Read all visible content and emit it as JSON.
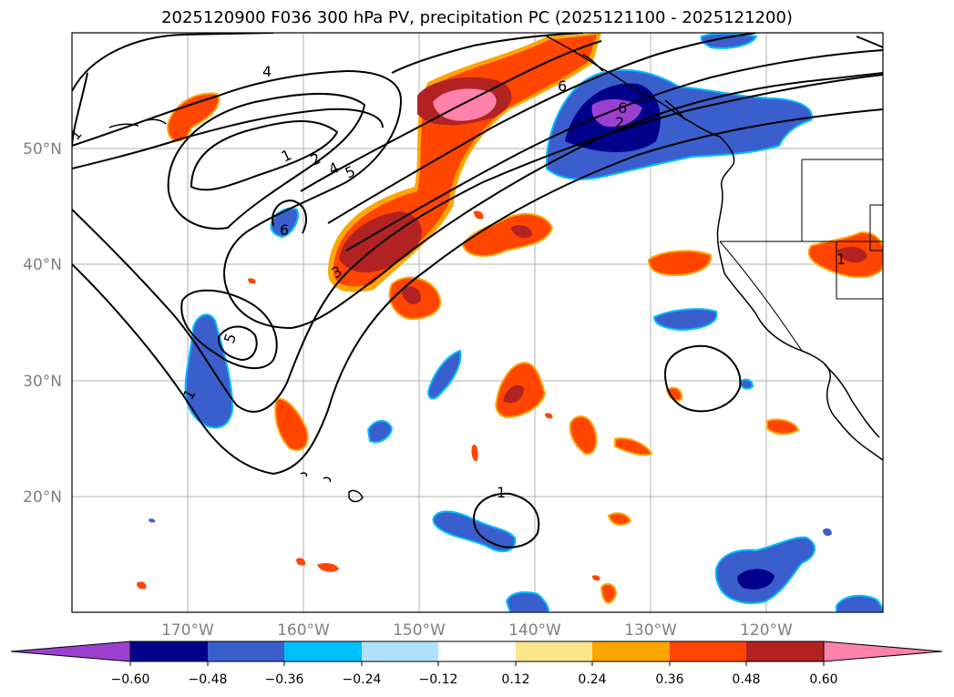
{
  "title": "2025120900 F036 300 hPa PV, precipitation PC (2025121100 - 2025121200)",
  "map": {
    "lat_labels": [
      "50°N",
      "40°N",
      "30°N",
      "20°N"
    ],
    "lon_labels": [
      "170°W",
      "160°W",
      "150°W",
      "140°W",
      "130°W",
      "120°W"
    ],
    "contour_labels": [
      "1",
      "4",
      "1",
      "2",
      "4",
      "5",
      "6",
      "6",
      "3",
      "5",
      "1",
      "2",
      "6",
      "1",
      "1"
    ]
  },
  "colorbar": {
    "ticks": [
      "−0.60",
      "−0.48",
      "−0.36",
      "−0.24",
      "−0.12",
      "0.12",
      "0.24",
      "0.36",
      "0.48",
      "0.60"
    ],
    "colors": [
      "#9b3fd0",
      "#00008b",
      "#3a5fcd",
      "#00bfff",
      "#b0e2ff",
      "#ffffff",
      "#fce68c",
      "#ffa500",
      "#ff4500",
      "#b22222",
      "#ff82ab",
      "#ff82ab"
    ]
  },
  "colors": {
    "purple": "#9b3fd0",
    "navy": "#00008b",
    "royal": "#3a5fcd",
    "sky": "#00bfff",
    "light_sky": "#b0e2ff",
    "yellow": "#fce68c",
    "orange": "#ffa500",
    "orange_red": "#ff4500",
    "firebrick": "#b22222",
    "pink": "#ff82ab",
    "grid": "#b0b0b0",
    "label": "#808080"
  }
}
